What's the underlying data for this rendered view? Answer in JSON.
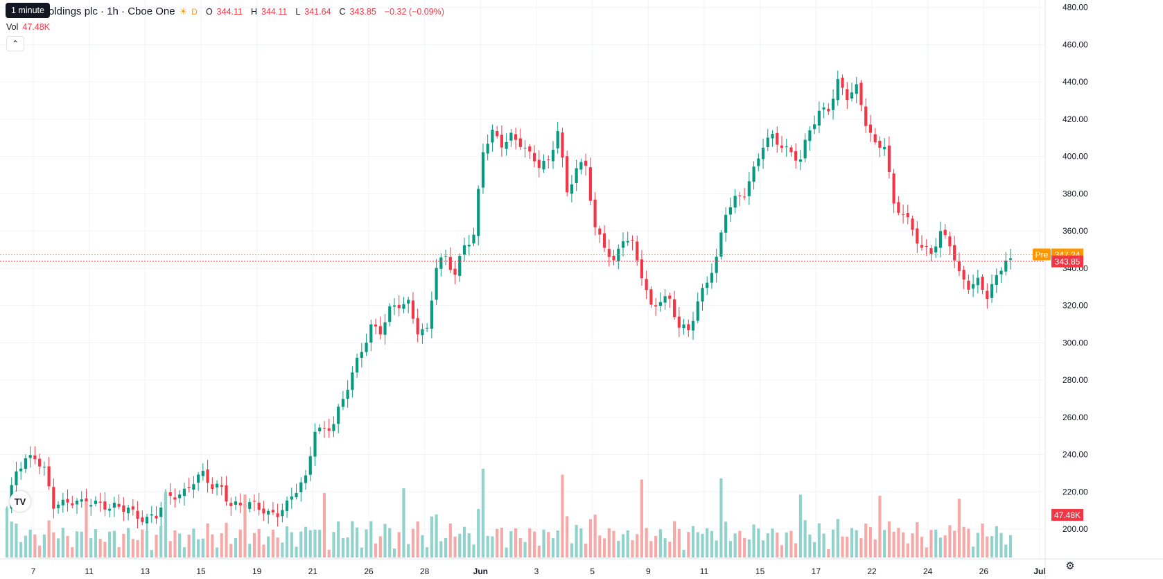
{
  "legend": {
    "symbol_title": "oldings plc · 1h · Cboe One",
    "market_icon": "sun-icon",
    "data_tag": "D",
    "open_label": "O",
    "open_value": "344.11",
    "high_label": "H",
    "high_value": "344.11",
    "low_label": "L",
    "low_value": "341.64",
    "close_label": "C",
    "close_value": "343.85",
    "change": "−0.32 (−0.09%)"
  },
  "tooltip": {
    "text": "1 minute"
  },
  "volume_legend": {
    "label": "Vol",
    "value": "47.48K"
  },
  "collapse_icon": "chevron-up-icon",
  "logo": {
    "text": "TV"
  },
  "settings_icon": "gear-icon",
  "colors": {
    "up": "#089981",
    "down": "#f23645",
    "up_vol": "#92d2cc",
    "down_vol": "#f7a9a7",
    "grid": "#f0f3fa",
    "axis_text": "#131722",
    "pre": "#ff9800"
  },
  "price_axis": {
    "ticks": [
      "480.00",
      "460.00",
      "440.00",
      "420.00",
      "400.00",
      "380.00",
      "360.00",
      "340.00",
      "320.00",
      "300.00",
      "280.00",
      "260.00",
      "240.00",
      "220.00",
      "200.00"
    ],
    "min": 184,
    "max": 484
  },
  "time_axis": {
    "ticks": [
      "7",
      "11",
      "13",
      "15",
      "19",
      "21",
      "26",
      "28",
      "Jun",
      "3",
      "5",
      "9",
      "11",
      "15",
      "17",
      "22",
      "24",
      "26",
      "Jul"
    ]
  },
  "price_labels": {
    "pre_tag": "Pre",
    "pre_value": "347.24",
    "pre_price": 347.24,
    "last_value": "343.85",
    "last_price": 343.85,
    "volume_value": "47.48K"
  },
  "chart_data": {
    "type": "candlestick",
    "price_anchors": [
      [
        0,
        211
      ],
      [
        2,
        230
      ],
      [
        4,
        236
      ],
      [
        6,
        240
      ],
      [
        8,
        233
      ],
      [
        10,
        213
      ],
      [
        12,
        212
      ],
      [
        14,
        214
      ],
      [
        16,
        215
      ],
      [
        18,
        216
      ],
      [
        20,
        213
      ],
      [
        22,
        210
      ],
      [
        24,
        211
      ],
      [
        26,
        212
      ],
      [
        28,
        208
      ],
      [
        30,
        205
      ],
      [
        32,
        206
      ],
      [
        34,
        216
      ],
      [
        36,
        219
      ],
      [
        38,
        221
      ],
      [
        40,
        226
      ],
      [
        42,
        228
      ],
      [
        44,
        222
      ],
      [
        46,
        223
      ],
      [
        48,
        214
      ],
      [
        50,
        213
      ],
      [
        52,
        212
      ],
      [
        54,
        211
      ],
      [
        56,
        209
      ],
      [
        58,
        210
      ],
      [
        60,
        213
      ],
      [
        62,
        220
      ],
      [
        64,
        226
      ],
      [
        66,
        255
      ],
      [
        68,
        254
      ],
      [
        70,
        257
      ],
      [
        72,
        268
      ],
      [
        74,
        283
      ],
      [
        76,
        297
      ],
      [
        78,
        310
      ],
      [
        80,
        306
      ],
      [
        82,
        316
      ],
      [
        84,
        320
      ],
      [
        86,
        322
      ],
      [
        88,
        308
      ],
      [
        90,
        306
      ],
      [
        92,
        340
      ],
      [
        94,
        345
      ],
      [
        96,
        338
      ],
      [
        98,
        354
      ],
      [
        100,
        357
      ],
      [
        102,
        402
      ],
      [
        104,
        412
      ],
      [
        106,
        408
      ],
      [
        108,
        412
      ],
      [
        110,
        407
      ],
      [
        112,
        399
      ],
      [
        114,
        395
      ],
      [
        116,
        398
      ],
      [
        118,
        416
      ],
      [
        120,
        380
      ],
      [
        122,
        392
      ],
      [
        124,
        395
      ],
      [
        126,
        362
      ],
      [
        128,
        354
      ],
      [
        130,
        342
      ],
      [
        132,
        355
      ],
      [
        134,
        352
      ],
      [
        136,
        338
      ],
      [
        138,
        320
      ],
      [
        140,
        323
      ],
      [
        142,
        321
      ],
      [
        144,
        308
      ],
      [
        146,
        308
      ],
      [
        148,
        323
      ],
      [
        150,
        333
      ],
      [
        152,
        343
      ],
      [
        154,
        370
      ],
      [
        156,
        378
      ],
      [
        158,
        382
      ],
      [
        160,
        392
      ],
      [
        162,
        405
      ],
      [
        164,
        410
      ],
      [
        166,
        407
      ],
      [
        168,
        403
      ],
      [
        170,
        398
      ],
      [
        172,
        413
      ],
      [
        174,
        423
      ],
      [
        176,
        427
      ],
      [
        178,
        441
      ],
      [
        180,
        432
      ],
      [
        182,
        435
      ],
      [
        184,
        418
      ],
      [
        186,
        407
      ],
      [
        188,
        408
      ],
      [
        190,
        373
      ],
      [
        192,
        368
      ],
      [
        194,
        360
      ],
      [
        196,
        352
      ],
      [
        198,
        350
      ],
      [
        200,
        358
      ],
      [
        202,
        352
      ],
      [
        204,
        336
      ],
      [
        206,
        332
      ],
      [
        208,
        334
      ],
      [
        210,
        325
      ],
      [
        212,
        333
      ],
      [
        214,
        345
      ],
      [
        215,
        344
      ]
    ],
    "bars": 216,
    "gaps_after": [
      101,
      189
    ]
  }
}
